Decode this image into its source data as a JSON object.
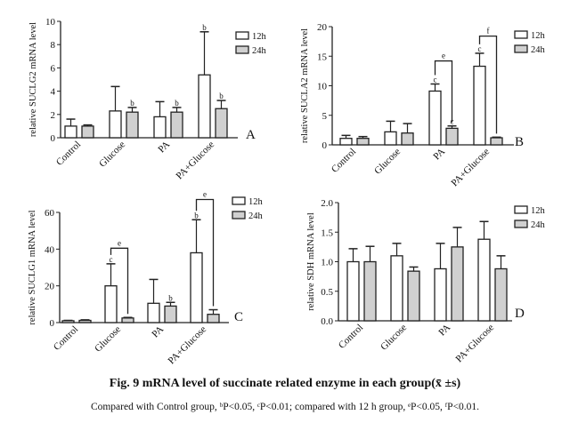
{
  "caption": {
    "title": "Fig. 9   mRNA level of succinate related enzyme in each group(x̄ ±s)",
    "note": "Compared with Control group, ᵇP<0.05, ᶜP<0.01; compared with 12 h group, ᵉP<0.05, ᶠP<0.01."
  },
  "colors": {
    "bar_12h": "#ffffff",
    "bar_24h": "#d0d0d0",
    "stroke": "#222222"
  },
  "chart_data": [
    {
      "type": "bar",
      "panel": "A",
      "ylabel": "relative SUCLG2 mRNA level",
      "categories": [
        "Control",
        "Glucose",
        "PA",
        "PA+Glucose"
      ],
      "ylim": [
        0,
        10
      ],
      "yticks": [
        0,
        2,
        4,
        6,
        8,
        10
      ],
      "legend": [
        "12h",
        "24h"
      ],
      "legend_position": "top-right",
      "series": [
        {
          "name": "12h",
          "values": [
            1.0,
            2.3,
            1.8,
            5.4
          ],
          "sd": [
            0.6,
            2.1,
            1.3,
            3.7
          ],
          "marks": [
            "",
            "",
            "",
            "b"
          ]
        },
        {
          "name": "24h",
          "values": [
            1.0,
            2.2,
            2.2,
            2.5
          ],
          "sd": [
            0.1,
            0.4,
            0.4,
            0.7
          ],
          "marks": [
            "",
            "b",
            "b",
            "b"
          ]
        }
      ],
      "brackets": []
    },
    {
      "type": "bar",
      "panel": "B",
      "ylabel": "relative SUCLA2 mRNA level",
      "categories": [
        "Control",
        "Glucose",
        "PA",
        "PA+Glucose"
      ],
      "ylim": [
        0,
        20
      ],
      "yticks": [
        0,
        5,
        10,
        15,
        20
      ],
      "legend": [
        "12h",
        "24h"
      ],
      "legend_position": "top-right",
      "series": [
        {
          "name": "12h",
          "values": [
            1.1,
            2.2,
            9.1,
            13.3
          ],
          "sd": [
            0.5,
            1.8,
            1.2,
            2.2
          ],
          "marks": [
            "",
            "",
            "c",
            "c"
          ]
        },
        {
          "name": "24h",
          "values": [
            1.1,
            2.0,
            2.8,
            1.2
          ],
          "sd": [
            0.3,
            1.6,
            0.4,
            0.1
          ],
          "marks": [
            "",
            "",
            "c",
            ""
          ]
        }
      ],
      "brackets": [
        {
          "group": 2,
          "label": "e",
          "y": 14.2
        },
        {
          "group": 3,
          "label": "f",
          "y": 18.4
        }
      ]
    },
    {
      "type": "bar",
      "panel": "C",
      "ylabel": "relative SUCLG1 mRNA level",
      "categories": [
        "Control",
        "Glucose",
        "PA",
        "PA+Glucose"
      ],
      "ylim": [
        0,
        60
      ],
      "yticks": [
        0,
        20,
        40,
        60
      ],
      "legend": [
        "12h",
        "24h"
      ],
      "legend_position": "top-right",
      "series": [
        {
          "name": "12h",
          "values": [
            1.0,
            20,
            10.5,
            38
          ],
          "sd": [
            0.2,
            12,
            13,
            18
          ],
          "marks": [
            "",
            "c",
            "",
            "b"
          ]
        },
        {
          "name": "24h",
          "values": [
            1.2,
            2.5,
            9.0,
            4.5
          ],
          "sd": [
            0.3,
            0.3,
            2.0,
            2.5
          ],
          "marks": [
            "",
            "",
            "b",
            ""
          ]
        }
      ],
      "brackets": [
        {
          "group": 1,
          "label": "e",
          "y": 40.5
        },
        {
          "group": 3,
          "label": "e",
          "y": 67
        }
      ]
    },
    {
      "type": "bar",
      "panel": "D",
      "ylabel": "relative SDH mRNA level",
      "categories": [
        "Control",
        "Glucose",
        "PA",
        "PA+Glucose"
      ],
      "ylim": [
        0,
        2.0
      ],
      "yticks": [
        "0.0",
        "0.5",
        "1.0",
        "1.5",
        "2.0"
      ],
      "legend": [
        "12h",
        "24h"
      ],
      "legend_position": "top-right",
      "series": [
        {
          "name": "12h",
          "values": [
            1.0,
            1.1,
            0.88,
            1.38
          ],
          "sd": [
            0.22,
            0.21,
            0.43,
            0.3
          ],
          "marks": [
            "",
            "",
            "",
            ""
          ]
        },
        {
          "name": "24h",
          "values": [
            1.0,
            0.84,
            1.25,
            0.88
          ],
          "sd": [
            0.26,
            0.07,
            0.33,
            0.22
          ],
          "marks": [
            "",
            "",
            "",
            ""
          ]
        }
      ],
      "brackets": []
    }
  ]
}
